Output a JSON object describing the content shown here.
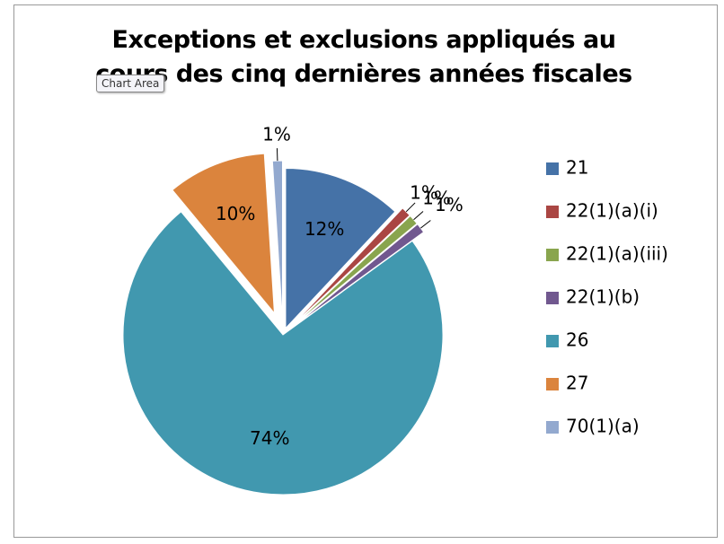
{
  "chart_data": {
    "type": "pie",
    "title": "Exceptions et exclusions appliqués au cours des cinq dernières années fiscales",
    "tooltip": "Chart Area",
    "series": [
      {
        "name": "21",
        "color": "#4572a7"
      }
    ],
    "categories": [
      "21",
      "22(1)(a)(i)",
      "22(1)(a)(iii)",
      "22(1)(b)",
      "26",
      "27",
      "70(1)(a)"
    ],
    "values": [
      12,
      1,
      1,
      1,
      74,
      10,
      1
    ],
    "value_labels": [
      "12%",
      "1%",
      "1%",
      "1%",
      "74%",
      "10%",
      "1%"
    ],
    "colors": [
      "#4572a7",
      "#aa4643",
      "#89a54e",
      "#71588f",
      "#4198af",
      "#db843d",
      "#93a9cf"
    ],
    "legend": "right"
  }
}
